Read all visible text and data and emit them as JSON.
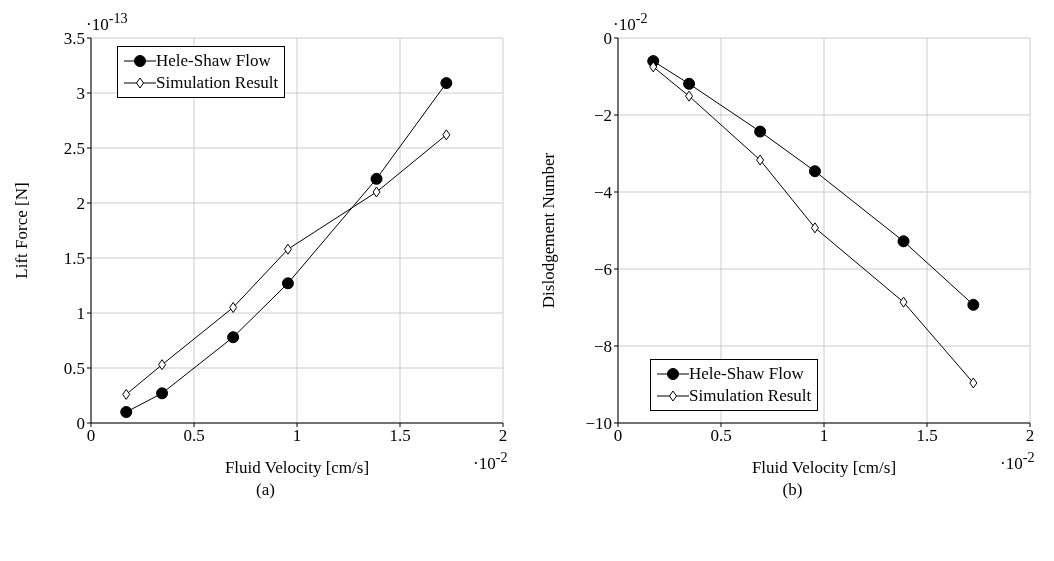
{
  "chart_data": [
    {
      "type": "line",
      "xlabel": "Fluid Velocity [cm/s]",
      "ylabel": "Lift Force [N]",
      "xlim": [
        0,
        2
      ],
      "xticks": [
        0,
        0.5,
        1,
        1.5,
        2
      ],
      "ylim": [
        0,
        3.5
      ],
      "yticks": [
        0,
        0.5,
        1,
        1.5,
        2,
        2.5,
        3,
        3.5
      ],
      "grid": true,
      "legend": "top left",
      "annotations": [
        "·10$^{-13}$",
        "·10$^{-2}$",
        "(a)"
      ],
      "series": [
        {
          "name": "Hele-Shaw Flow",
          "color": "#000000",
          "marker": "circle",
          "x": [
            0.171,
            0.345,
            0.69,
            0.956,
            1.386,
            1.725
          ],
          "values": [
            0.1,
            0.27,
            0.78,
            1.27,
            2.22,
            3.09
          ]
        },
        {
          "name": "Simulation Result",
          "color": "#000000",
          "marker": "diamond",
          "x": [
            0.171,
            0.345,
            0.69,
            0.956,
            1.386,
            1.725
          ],
          "values": [
            0.26,
            0.53,
            1.05,
            1.58,
            2.1,
            2.62
          ]
        }
      ]
    },
    {
      "type": "line",
      "xlabel": "Fluid Velocity [cm/s]",
      "ylabel": "Dislodgement Number",
      "xlim": [
        0,
        2
      ],
      "xticks": [
        0,
        0.5,
        1,
        1.5,
        2
      ],
      "ylim": [
        -10,
        0
      ],
      "yticks": [
        {
          "value": -10,
          "label": "−10"
        },
        {
          "value": -8,
          "label": "−8"
        },
        {
          "value": -6,
          "label": "−6"
        },
        {
          "value": -4,
          "label": "−4"
        },
        {
          "value": -2,
          "label": "−2"
        },
        0
      ],
      "grid": true,
      "legend": "bottom left",
      "annotations": [
        "·10$^{-2}$",
        "·10$^{-2}$",
        "(b)"
      ],
      "series": [
        {
          "name": "Hele-Shaw Flow",
          "color": "#000000",
          "marker": "circle",
          "x": [
            0.171,
            0.345,
            0.69,
            0.956,
            1.386,
            1.725
          ],
          "values": [
            -0.6,
            -1.19,
            -2.43,
            -3.46,
            -5.28,
            -6.93
          ]
        },
        {
          "name": "Simulation Result",
          "color": "#000000",
          "marker": "diamond",
          "x": [
            0.171,
            0.345,
            0.69,
            0.956,
            1.386,
            1.725
          ],
          "values": [
            -0.75,
            -1.51,
            -3.17,
            -4.93,
            -6.86,
            -8.96
          ]
        }
      ]
    }
  ]
}
